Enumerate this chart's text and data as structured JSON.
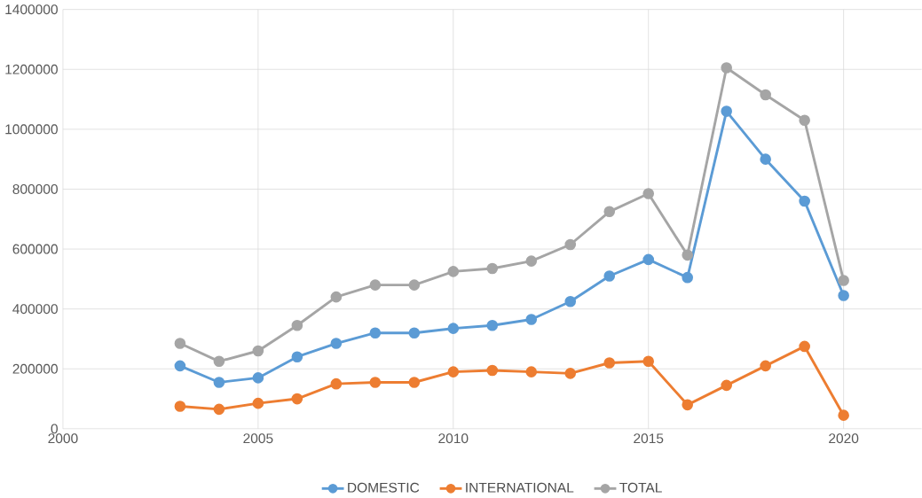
{
  "chart_data": {
    "type": "line",
    "x": [
      2003,
      2004,
      2005,
      2006,
      2007,
      2008,
      2009,
      2010,
      2011,
      2012,
      2013,
      2014,
      2015,
      2016,
      2017,
      2018,
      2019,
      2020
    ],
    "series": [
      {
        "name": "DOMESTIC",
        "color": "#5b9bd5",
        "values": [
          210000,
          155000,
          170000,
          240000,
          285000,
          320000,
          320000,
          335000,
          345000,
          365000,
          425000,
          510000,
          565000,
          505000,
          1060000,
          900000,
          760000,
          445000
        ]
      },
      {
        "name": "INTERNATIONAL",
        "color": "#ed7d31",
        "values": [
          75000,
          65000,
          85000,
          100000,
          150000,
          155000,
          155000,
          190000,
          195000,
          190000,
          185000,
          220000,
          225000,
          80000,
          145000,
          210000,
          275000,
          45000
        ]
      },
      {
        "name": "TOTAL",
        "color": "#a5a5a5",
        "values": [
          285000,
          225000,
          260000,
          345000,
          440000,
          480000,
          480000,
          525000,
          535000,
          560000,
          615000,
          725000,
          785000,
          580000,
          1205000,
          1115000,
          1030000,
          495000
        ]
      }
    ],
    "xlim": [
      2000,
      2022
    ],
    "xticks": [
      2000,
      2005,
      2010,
      2015,
      2020
    ],
    "ylim": [
      0,
      1400000
    ],
    "yticks": [
      0,
      200000,
      400000,
      600000,
      800000,
      1000000,
      1200000,
      1400000
    ],
    "grid": true,
    "legend": "bottom",
    "marker": "circle",
    "line_style": "solid"
  }
}
